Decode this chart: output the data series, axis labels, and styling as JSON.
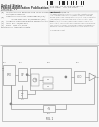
{
  "bg_color": "#f8f8f8",
  "barcode_color": "#333333",
  "text_color": "#666666",
  "dark_text": "#444444",
  "light_text": "#888888",
  "circuit_color": "#777777",
  "line_color": "#888888",
  "box_edge": "#888888",
  "header": {
    "title_left": "United States",
    "title_left2": "Patent Application Publication",
    "author": "Lim et al.",
    "pub_no": "Pub. No.: US 2011/0148489 A1",
    "pub_date": "Pub. Date:    Jun. 23, 2011"
  },
  "meta": [
    [
      "(54)",
      "APPARATUS TO REMOVE THE LOOP FILTER RESISTOR NOISE IN"
    ],
    [
      "",
      "CHARGE-PUMP PLL"
    ],
    [
      "(75)",
      "Inventors: Jae-2 Lim, Gyeonggi-do (KR);"
    ],
    [
      "",
      "         Jeong-Woo Lee, Gyeonggi-do (KR)"
    ],
    [
      "(73)",
      "Assignee: Samsung Electro-Mechanics Co., Ltd."
    ],
    [
      "(21)",
      "Appl. No.: 12/943,657"
    ],
    [
      "(22)",
      "Filed:   Nov. 10, 2010"
    ]
  ],
  "abstract_title": "Abstract",
  "abstract_body": "An apparatus to remove loop filter resistor noise in a charge-pump PLL includes a replica charge pump, a noise cancellation circuit, a subtraction node and a loop filter. The replica charge pump generates a replica noise current that replicates the thermal noise of the loop filter resistor. The noise cancellation circuit processes this current. The subtraction removes the noise from the PLL signal path improving phase noise performance.",
  "fig_label": "FIG. 1"
}
